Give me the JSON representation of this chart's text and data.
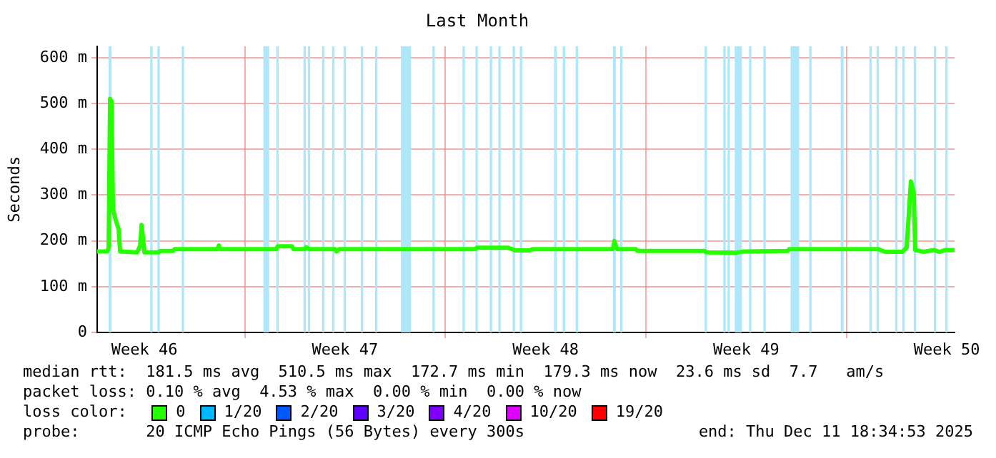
{
  "chart_data": {
    "type": "line",
    "title": "Last Month",
    "ylabel": "Seconds",
    "xlim": [
      "2025-11-11T20:24",
      "2025-12-11T18:34"
    ],
    "xticks": [
      {
        "value": "2025-11-13T12:00",
        "label": "Week 46"
      },
      {
        "value": "2025-11-17T00:00",
        "label": null
      },
      {
        "value": "2025-11-20T12:00",
        "label": "Week 47"
      },
      {
        "value": "2025-11-24T00:00",
        "label": null
      },
      {
        "value": "2025-11-27T12:00",
        "label": "Week 48"
      },
      {
        "value": "2025-12-01T00:00",
        "label": null
      },
      {
        "value": "2025-12-04T12:00",
        "label": "Week 49"
      },
      {
        "value": "2025-12-08T00:00",
        "label": null
      },
      {
        "value": "2025-12-11T12:00",
        "label": "Week 50"
      }
    ],
    "ylim": [
      0,
      625
    ],
    "yticks": [
      0,
      {
        "value": 100,
        "label": "100 m"
      },
      {
        "value": 200,
        "label": "200 m"
      },
      {
        "value": 300,
        "label": "300 m"
      },
      {
        "value": 400,
        "label": "400 m"
      },
      {
        "value": 500,
        "label": "500 m"
      },
      {
        "value": 600,
        "label": "600 m"
      }
    ],
    "grid": true,
    "legend": "bottom",
    "legend_title": "loss color:",
    "marker": "none",
    "line_style": "solid",
    "x": [
      "2025-11-11T20:24",
      "2025-11-12T04:48",
      "2025-11-12T06:00",
      "2025-11-12T07:12",
      "2025-11-12T08:24",
      "2025-11-12T09:36",
      "2025-11-12T12:00",
      "2025-11-12T14:24",
      "2025-11-12T15:36",
      "2025-11-13T06:00",
      "2025-11-13T08:24",
      "2025-11-13T09:36",
      "2025-11-13T12:00",
      "2025-11-14T00:00",
      "2025-11-14T01:12",
      "2025-11-14T12:00",
      "2025-11-14T13:12",
      "2025-11-16T01:12",
      "2025-11-16T02:24",
      "2025-11-16T03:36",
      "2025-11-18T02:24",
      "2025-11-18T03:36",
      "2025-11-18T15:36",
      "2025-11-18T16:48",
      "2025-11-19T02:24",
      "2025-11-19T03:36",
      "2025-11-19T06:00",
      "2025-11-20T03:36",
      "2025-11-20T04:48",
      "2025-11-20T07:12",
      "2025-11-25T01:12",
      "2025-11-25T02:24",
      "2025-11-26T04:48",
      "2025-11-26T10:48",
      "2025-11-26T22:48",
      "2025-11-27T01:12",
      "2025-11-29T20:24",
      "2025-11-29T21:36",
      "2025-11-30T00:00",
      "2025-11-30T15:36",
      "2025-11-30T16:48",
      "2025-12-03T01:12",
      "2025-12-03T02:24",
      "2025-12-04T03:36",
      "2025-12-04T10:48",
      "2025-12-05T22:48",
      "2025-12-06T00:00",
      "2025-12-09T02:24",
      "2025-12-09T08:24",
      "2025-12-09T22:48",
      "2025-12-10T02:24",
      "2025-12-10T06:00",
      "2025-12-10T08:24",
      "2025-12-10T09:36",
      "2025-12-10T16:48",
      "2025-12-11T01:12",
      "2025-12-11T06:00",
      "2025-12-11T10:48",
      "2025-12-11T18:34"
    ],
    "series": [
      {
        "name": "0",
        "color": "#26ff00",
        "values": [
          177,
          177,
          185,
          510,
          505,
          270,
          245,
          225,
          177,
          175,
          190,
          235,
          175,
          175,
          178,
          178,
          182,
          182,
          190,
          182,
          182,
          188,
          188,
          182,
          182,
          186,
          182,
          182,
          177,
          182,
          182,
          185,
          185,
          179,
          179,
          182,
          182,
          200,
          182,
          182,
          178,
          178,
          175,
          174,
          177,
          178,
          182,
          182,
          176,
          176,
          185,
          330,
          305,
          180,
          176,
          180,
          176,
          180,
          180
        ]
      },
      {
        "name": "1/20",
        "color": "#00b8ff",
        "values": [
          null,
          null,
          null,
          null,
          null,
          null,
          null,
          null,
          null,
          null,
          null,
          null,
          null,
          null,
          null,
          null,
          null,
          null,
          null,
          null,
          null,
          null,
          null,
          null,
          null,
          null,
          null,
          null,
          null,
          null,
          null,
          null,
          null,
          null,
          null,
          null,
          null,
          null,
          null,
          null,
          null,
          null,
          null,
          null,
          null,
          null,
          null,
          null,
          null,
          null,
          null,
          null,
          null,
          null,
          null,
          null,
          null,
          null,
          null
        ]
      },
      {
        "name": "2/20",
        "color": "#0059ff",
        "values": [
          null,
          null,
          null,
          null,
          null,
          null,
          null,
          null,
          null,
          null,
          null,
          null,
          null,
          null,
          null,
          null,
          null,
          null,
          null,
          null,
          null,
          null,
          null,
          null,
          null,
          null,
          null,
          null,
          null,
          null,
          null,
          null,
          null,
          null,
          null,
          null,
          null,
          null,
          null,
          null,
          null,
          null,
          null,
          null,
          null,
          null,
          null,
          null,
          null,
          null,
          null,
          null,
          null,
          null,
          null,
          null,
          null,
          null,
          null
        ]
      },
      {
        "name": "3/20",
        "color": "#5e00ff",
        "values": [
          null,
          null,
          null,
          null,
          null,
          null,
          null,
          null,
          null,
          null,
          null,
          null,
          null,
          null,
          null,
          null,
          null,
          null,
          null,
          null,
          null,
          null,
          null,
          null,
          null,
          null,
          null,
          null,
          null,
          null,
          null,
          null,
          null,
          null,
          null,
          null,
          null,
          null,
          null,
          null,
          null,
          null,
          null,
          null,
          null,
          null,
          null,
          null,
          null,
          null,
          null,
          null,
          null,
          null,
          null,
          null,
          null,
          null,
          null
        ]
      },
      {
        "name": "4/20",
        "color": "#7e00ff",
        "values": [
          null,
          null,
          null,
          null,
          null,
          null,
          null,
          null,
          null,
          null,
          null,
          null,
          null,
          null,
          null,
          null,
          null,
          null,
          null,
          null,
          null,
          null,
          null,
          null,
          null,
          null,
          null,
          null,
          null,
          null,
          null,
          null,
          null,
          null,
          null,
          null,
          null,
          null,
          null,
          null,
          null,
          null,
          null,
          null,
          null,
          null,
          null,
          null,
          null,
          null,
          null,
          null,
          null,
          null,
          null,
          null,
          null,
          null,
          null
        ]
      },
      {
        "name": "10/20",
        "color": "#dd00ff",
        "values": [
          null,
          null,
          null,
          null,
          null,
          null,
          null,
          null,
          null,
          null,
          null,
          null,
          null,
          null,
          null,
          null,
          null,
          null,
          null,
          null,
          null,
          null,
          null,
          null,
          null,
          null,
          null,
          null,
          null,
          null,
          null,
          null,
          null,
          null,
          null,
          null,
          null,
          null,
          null,
          null,
          null,
          null,
          null,
          null,
          null,
          null,
          null,
          null,
          null,
          null,
          null,
          null,
          null,
          null,
          null,
          null,
          null,
          null,
          null
        ]
      },
      {
        "name": "19/20",
        "color": "#ff0000",
        "values": [
          null,
          null,
          null,
          null,
          null,
          null,
          null,
          null,
          null,
          null,
          null,
          null,
          null,
          null,
          null,
          null,
          null,
          null,
          null,
          null,
          null,
          null,
          null,
          null,
          null,
          null,
          null,
          null,
          null,
          null,
          null,
          null,
          null,
          null,
          null,
          null,
          null,
          null,
          null,
          null,
          null,
          null,
          null,
          null,
          null,
          null,
          null,
          null,
          null,
          null,
          null,
          null,
          null,
          null,
          null,
          null,
          null,
          null,
          null
        ]
      }
    ],
    "bands": [
      {
        "axis": "x",
        "from": "2025-11-12T06:00",
        "to": "2025-11-12T08:24",
        "color": "#aee6fa"
      },
      {
        "axis": "x",
        "from": "2025-11-13T16:48",
        "to": "2025-11-13T18:48",
        "color": "#aee6fa"
      },
      {
        "axis": "x",
        "from": "2025-11-13T22:48",
        "to": "2025-11-14T00:48",
        "color": "#aee6fa"
      },
      {
        "axis": "x",
        "from": "2025-11-14T19:12",
        "to": "2025-11-14T21:12",
        "color": "#aee6fa"
      },
      {
        "axis": "x",
        "from": "2025-11-17T15:36",
        "to": "2025-11-17T20:24",
        "color": "#aee6fa"
      },
      {
        "axis": "x",
        "from": "2025-11-18T02:24",
        "to": "2025-11-18T04:24",
        "color": "#aee6fa"
      },
      {
        "axis": "x",
        "from": "2025-11-19T01:12",
        "to": "2025-11-19T03:12",
        "color": "#aee6fa"
      },
      {
        "axis": "x",
        "from": "2025-11-19T04:48",
        "to": "2025-11-19T06:48",
        "color": "#aee6fa"
      },
      {
        "axis": "x",
        "from": "2025-11-19T16:48",
        "to": "2025-11-19T18:48",
        "color": "#aee6fa"
      },
      {
        "axis": "x",
        "from": "2025-11-20T01:12",
        "to": "2025-11-20T03:12",
        "color": "#aee6fa"
      },
      {
        "axis": "x",
        "from": "2025-11-20T10:48",
        "to": "2025-11-20T12:48",
        "color": "#aee6fa"
      },
      {
        "axis": "x",
        "from": "2025-11-21T01:12",
        "to": "2025-11-21T03:12",
        "color": "#aee6fa"
      },
      {
        "axis": "x",
        "from": "2025-11-21T13:12",
        "to": "2025-11-21T15:12",
        "color": "#aee6fa"
      },
      {
        "axis": "x",
        "from": "2025-11-22T10:48",
        "to": "2025-11-22T19:12",
        "color": "#aee6fa"
      },
      {
        "axis": "x",
        "from": "2025-11-23T13:12",
        "to": "2025-11-23T15:12",
        "color": "#aee6fa"
      },
      {
        "axis": "x",
        "from": "2025-11-24T14:24",
        "to": "2025-11-24T16:24",
        "color": "#aee6fa"
      },
      {
        "axis": "x",
        "from": "2025-11-25T01:12",
        "to": "2025-11-25T03:12",
        "color": "#aee6fa"
      },
      {
        "axis": "x",
        "from": "2025-11-25T13:12",
        "to": "2025-11-25T15:12",
        "color": "#aee6fa"
      },
      {
        "axis": "x",
        "from": "2025-11-25T20:24",
        "to": "2025-11-25T22:24",
        "color": "#aee6fa"
      },
      {
        "axis": "x",
        "from": "2025-11-26T08:24",
        "to": "2025-11-26T10:24",
        "color": "#aee6fa"
      },
      {
        "axis": "x",
        "from": "2025-11-26T14:24",
        "to": "2025-11-26T16:24",
        "color": "#aee6fa"
      },
      {
        "axis": "x",
        "from": "2025-11-27T19:12",
        "to": "2025-11-27T21:12",
        "color": "#aee6fa"
      },
      {
        "axis": "x",
        "from": "2025-11-28T02:24",
        "to": "2025-11-28T04:24",
        "color": "#aee6fa"
      },
      {
        "axis": "x",
        "from": "2025-11-28T13:12",
        "to": "2025-11-28T15:12",
        "color": "#aee6fa"
      },
      {
        "axis": "x",
        "from": "2025-11-29T20:24",
        "to": "2025-11-29T22:48",
        "color": "#aee6fa"
      },
      {
        "axis": "x",
        "from": "2025-11-30T02:24",
        "to": "2025-11-30T04:24",
        "color": "#aee6fa"
      },
      {
        "axis": "x",
        "from": "2025-12-03T01:12",
        "to": "2025-12-03T03:12",
        "color": "#aee6fa"
      },
      {
        "axis": "x",
        "from": "2025-12-03T16:48",
        "to": "2025-12-03T18:48",
        "color": "#aee6fa"
      },
      {
        "axis": "x",
        "from": "2025-12-03T20:24",
        "to": "2025-12-03T22:24",
        "color": "#aee6fa"
      },
      {
        "axis": "x",
        "from": "2025-12-04T02:24",
        "to": "2025-12-04T08:24",
        "color": "#aee6fa"
      },
      {
        "axis": "x",
        "from": "2025-12-04T14:24",
        "to": "2025-12-04T16:24",
        "color": "#aee6fa"
      },
      {
        "axis": "x",
        "from": "2025-12-05T02:24",
        "to": "2025-12-05T04:24",
        "color": "#aee6fa"
      },
      {
        "axis": "x",
        "from": "2025-12-06T01:12",
        "to": "2025-12-06T08:24",
        "color": "#aee6fa"
      },
      {
        "axis": "x",
        "from": "2025-12-06T16:48",
        "to": "2025-12-06T18:48",
        "color": "#aee6fa"
      },
      {
        "axis": "x",
        "from": "2025-12-07T19:12",
        "to": "2025-12-07T21:36",
        "color": "#aee6fa"
      },
      {
        "axis": "x",
        "from": "2025-12-08T19:12",
        "to": "2025-12-08T21:12",
        "color": "#aee6fa"
      },
      {
        "axis": "x",
        "from": "2025-12-09T01:12",
        "to": "2025-12-09T03:12",
        "color": "#aee6fa"
      },
      {
        "axis": "x",
        "from": "2025-12-09T16:48",
        "to": "2025-12-09T18:48",
        "color": "#aee6fa"
      },
      {
        "axis": "x",
        "from": "2025-12-09T22:48",
        "to": "2025-12-10T00:48",
        "color": "#aee6fa"
      },
      {
        "axis": "x",
        "from": "2025-12-10T08:24",
        "to": "2025-12-10T10:24",
        "color": "#aee6fa"
      },
      {
        "axis": "x",
        "from": "2025-12-11T01:12",
        "to": "2025-12-11T03:12",
        "color": "#aee6fa"
      },
      {
        "axis": "x",
        "from": "2025-12-11T10:48",
        "to": "2025-12-11T12:48",
        "color": "#aee6fa"
      }
    ],
    "annotations": [
      "median rtt:  181.5 ms avg  510.5 ms max  172.7 ms min  179.3 ms now  23.6 ms sd  7.7   am/s",
      "packet loss: 0.10 % avg  4.53 % max  0.00 % min  0.00 % now",
      "probe:       20 ICMP Echo Pings (56 Bytes) every 300s",
      "end: Thu Dec 11 18:34:53 2025"
    ]
  }
}
